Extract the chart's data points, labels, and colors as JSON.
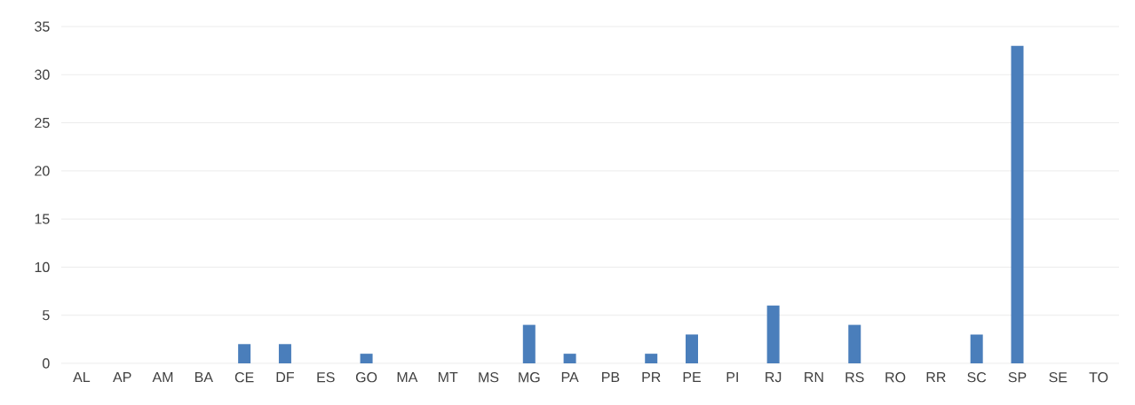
{
  "chart_data": {
    "type": "bar",
    "categories": [
      "AL",
      "AP",
      "AM",
      "BA",
      "CE",
      "DF",
      "ES",
      "GO",
      "MA",
      "MT",
      "MS",
      "MG",
      "PA",
      "PB",
      "PR",
      "PE",
      "PI",
      "RJ",
      "RN",
      "RS",
      "RO",
      "RR",
      "SC",
      "SP",
      "SE",
      "TO"
    ],
    "values": [
      0,
      0,
      0,
      0,
      2,
      2,
      0,
      1,
      0,
      0,
      0,
      4,
      1,
      0,
      1,
      3,
      0,
      6,
      0,
      4,
      0,
      0,
      3,
      33,
      0,
      0
    ],
    "color": "#4a7ebb",
    "ylim": [
      0,
      35
    ],
    "yticks": [
      0,
      5,
      10,
      15,
      20,
      25,
      30,
      35
    ],
    "grid": "y"
  }
}
